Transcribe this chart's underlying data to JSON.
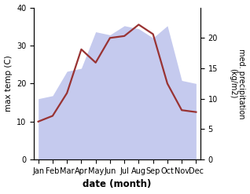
{
  "months": [
    "Jan",
    "Feb",
    "Mar",
    "Apr",
    "May",
    "Jun",
    "Jul",
    "Aug",
    "Sep",
    "Oct",
    "Nov",
    "Dec"
  ],
  "month_positions": [
    0,
    1,
    2,
    3,
    4,
    5,
    6,
    7,
    8,
    9,
    10,
    11
  ],
  "temp": [
    10.0,
    11.5,
    17.5,
    29.0,
    25.5,
    32.0,
    32.5,
    35.5,
    33.0,
    20.0,
    13.0,
    12.5
  ],
  "precip": [
    10.0,
    10.5,
    14.5,
    15.0,
    21.0,
    20.5,
    22.0,
    21.5,
    20.0,
    22.0,
    13.0,
    12.5
  ],
  "temp_color": "#993333",
  "precip_fill_color": "#c5caee",
  "ylim_left": [
    0,
    40
  ],
  "ylim_right": [
    0,
    25
  ],
  "ylabel_left": "max temp (C)",
  "ylabel_right": "med. precipitation\n(kg/m2)",
  "xlabel": "date (month)",
  "background_color": "#ffffff",
  "temp_linewidth": 1.6
}
